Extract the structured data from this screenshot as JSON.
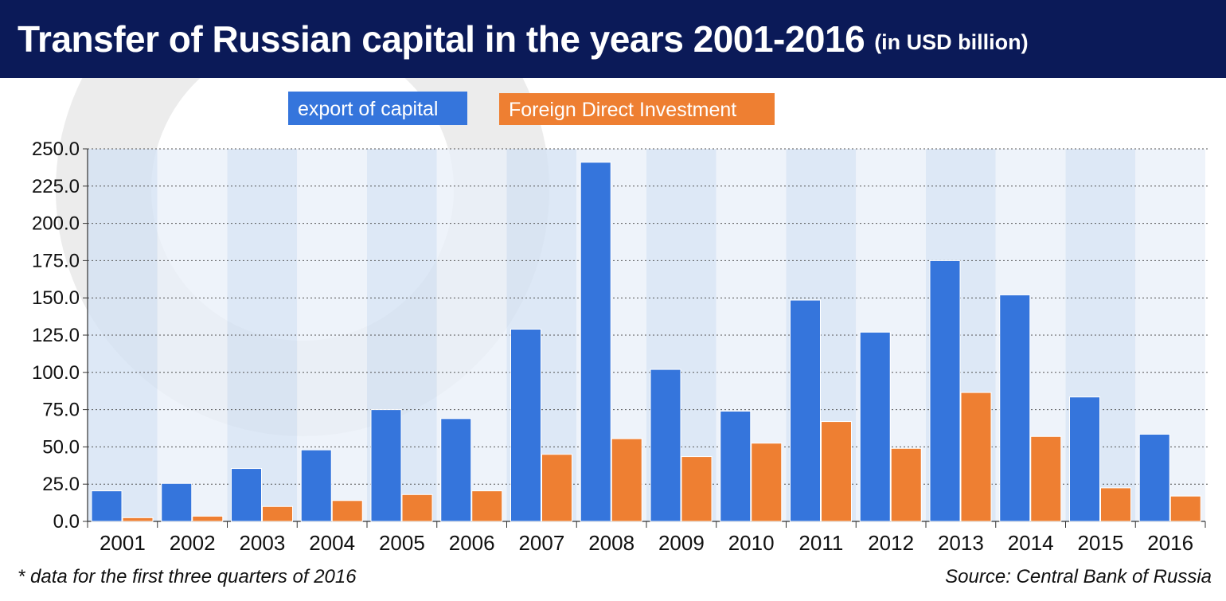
{
  "header": {
    "title": "Transfer of Russian capital in the years 2001-2016",
    "subtitle": "(in USD billion)"
  },
  "footer": {
    "note": "* data for the first three quarters of 2016",
    "source": "Source: Central Bank of Russia"
  },
  "colors": {
    "header_bg": "#0b1a58",
    "export": "#3575dc",
    "fdi": "#ee7f32",
    "band_a": "#d5e2f4",
    "band_b": "#eaf0f9"
  },
  "chart_data": {
    "type": "bar",
    "categories": [
      "2001",
      "2002",
      "2003",
      "2004",
      "2005",
      "2006",
      "2007",
      "2008",
      "2009",
      "2010",
      "2011",
      "2012",
      "2013",
      "2014",
      "2015",
      "2016"
    ],
    "series": [
      {
        "name": "export of capital",
        "values": [
          20.5,
          25.5,
          35.5,
          48,
          75,
          69,
          129,
          241,
          102,
          74,
          148.5,
          127,
          175,
          152,
          83.5,
          58.5
        ]
      },
      {
        "name": "Foreign Direct Investment",
        "values": [
          2.5,
          3.5,
          10,
          14,
          18,
          20.5,
          45,
          55.5,
          43.5,
          52.5,
          67,
          49,
          86.5,
          57,
          22.5,
          17
        ]
      }
    ],
    "y_ticks": [
      "0.0",
      "25.0",
      "50.0",
      "75.0",
      "100.0",
      "125.0",
      "150.0",
      "175.0",
      "200.0",
      "225.0",
      "250.0"
    ],
    "ylim": [
      0,
      250
    ],
    "grid": "horizontal dotted",
    "legend_position": "top"
  }
}
